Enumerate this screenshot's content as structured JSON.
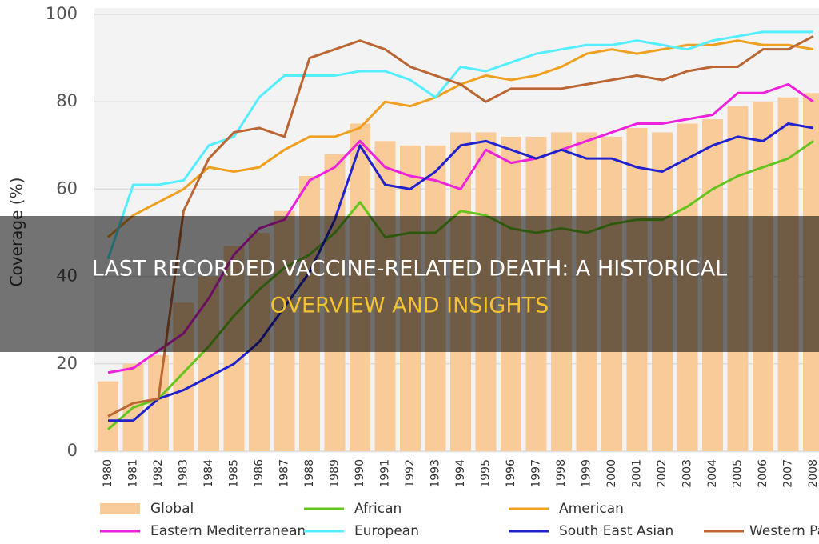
{
  "chart_data": {
    "type": "combo",
    "ylabel": "Coverage (%)",
    "categories": [
      "1980",
      "1981",
      "1982",
      "1983",
      "1984",
      "1985",
      "1986",
      "1987",
      "1988",
      "1989",
      "1990",
      "1991",
      "1992",
      "1993",
      "1994",
      "1995",
      "1996",
      "1997",
      "1998",
      "1999",
      "2000",
      "2001",
      "2002",
      "2003",
      "2004",
      "2005",
      "2006",
      "2007",
      "2008"
    ],
    "ylim": [
      0,
      100
    ],
    "yticks": [
      0,
      20,
      40,
      60,
      80,
      100
    ],
    "grid": true,
    "series": [
      {
        "name": "Global",
        "type": "bar",
        "color": "#f9cb98",
        "values": [
          16,
          20,
          22,
          34,
          40,
          47,
          50,
          55,
          63,
          68,
          75,
          71,
          70,
          70,
          73,
          73,
          72,
          72,
          73,
          73,
          72,
          74,
          73,
          75,
          76,
          79,
          80,
          81,
          82
        ]
      },
      {
        "name": "African",
        "type": "line",
        "color": "#66c41e",
        "values": [
          5,
          10,
          12,
          18,
          24,
          31,
          37,
          42,
          45,
          50,
          57,
          49,
          50,
          50,
          55,
          54,
          51,
          50,
          51,
          50,
          52,
          53,
          53,
          56,
          60,
          63,
          65,
          67,
          71
        ]
      },
      {
        "name": "American",
        "type": "line",
        "color": "#f0a020",
        "values": [
          49,
          54,
          57,
          60,
          65,
          64,
          65,
          69,
          72,
          72,
          74,
          80,
          79,
          81,
          84,
          86,
          85,
          86,
          88,
          91,
          92,
          91,
          92,
          93,
          93,
          94,
          93,
          93,
          92
        ]
      },
      {
        "name": "Eastern Mediterranean",
        "type": "line",
        "color": "#ee22dd",
        "values": [
          18,
          19,
          23,
          27,
          35,
          45,
          51,
          53,
          62,
          65,
          71,
          65,
          63,
          62,
          60,
          69,
          66,
          67,
          69,
          71,
          73,
          75,
          75,
          76,
          77,
          82,
          82,
          84,
          80
        ]
      },
      {
        "name": "European",
        "type": "line",
        "color": "#55eeff",
        "values": [
          44,
          61,
          61,
          62,
          70,
          72,
          81,
          86,
          86,
          86,
          87,
          87,
          85,
          81,
          88,
          87,
          89,
          91,
          92,
          93,
          93,
          94,
          93,
          92,
          94,
          95,
          96,
          96,
          96
        ]
      },
      {
        "name": "South East Asian",
        "type": "line",
        "color": "#2222cc",
        "values": [
          7,
          7,
          12,
          14,
          17,
          20,
          25,
          33,
          41,
          53,
          70,
          61,
          60,
          64,
          70,
          71,
          69,
          67,
          69,
          67,
          67,
          65,
          64,
          67,
          70,
          72,
          71,
          75,
          74
        ]
      },
      {
        "name": "Western Pac",
        "type": "line",
        "color": "#bb6633",
        "values": [
          8,
          11,
          12,
          55,
          67,
          73,
          74,
          72,
          90,
          92,
          94,
          92,
          88,
          86,
          84,
          80,
          83,
          83,
          83,
          84,
          85,
          86,
          85,
          87,
          88,
          88,
          92,
          92,
          95
        ]
      }
    ]
  },
  "banner": {
    "lines": [
      "LAST RECORDED VACCINE-RELATED DEATH: A HISTORICAL",
      "OVERVIEW AND INSIGHTS"
    ]
  }
}
